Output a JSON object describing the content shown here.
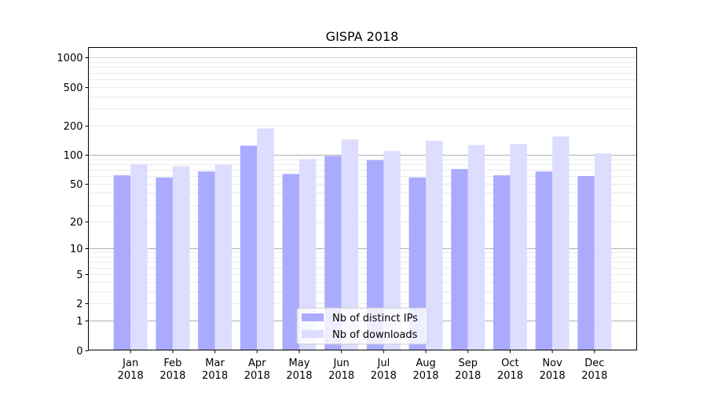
{
  "chart_data": {
    "type": "bar",
    "title": "GISPA 2018",
    "xlabel": "",
    "ylabel": "",
    "yscale": "log10(1+y)",
    "ylim": [
      0,
      1270
    ],
    "yticks": [
      0,
      1,
      2,
      5,
      10,
      20,
      50,
      100,
      200,
      500,
      1000
    ],
    "ytick_labels": [
      "0",
      "1",
      "2",
      "5",
      "10",
      "20",
      "50",
      "100",
      "200",
      "500",
      "1000"
    ],
    "grid": true,
    "categories": [
      [
        "Jan",
        "2018"
      ],
      [
        "Feb",
        "2018"
      ],
      [
        "Mar",
        "2018"
      ],
      [
        "Apr",
        "2018"
      ],
      [
        "May",
        "2018"
      ],
      [
        "Jun",
        "2018"
      ],
      [
        "Jul",
        "2018"
      ],
      [
        "Aug",
        "2018"
      ],
      [
        "Sep",
        "2018"
      ],
      [
        "Oct",
        "2018"
      ],
      [
        "Nov",
        "2018"
      ],
      [
        "Dec",
        "2018"
      ]
    ],
    "series": [
      {
        "name": "Nb of distinct IPs",
        "color": "#aaaaff",
        "values": [
          61,
          58,
          67,
          124,
          63,
          97,
          88,
          58,
          71,
          61,
          67,
          60
        ]
      },
      {
        "name": "Nb of downloads",
        "color": "#ddddff",
        "values": [
          80,
          76,
          79,
          187,
          90,
          144,
          109,
          139,
          126,
          129,
          155,
          103
        ]
      }
    ],
    "legend_position": "lower center"
  }
}
